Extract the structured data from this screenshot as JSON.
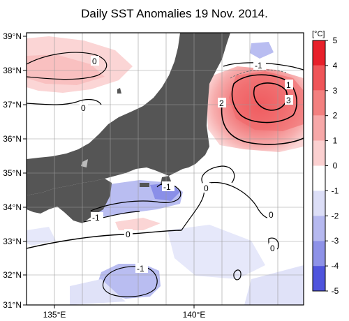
{
  "title": "Daily SST Anomalies 19 Nov. 2014.",
  "lat_labels": [
    "39°N",
    "38°N",
    "37°N",
    "36°N",
    "35°N",
    "34°N",
    "33°N",
    "32°N",
    "31°N"
  ],
  "lon_labels": [
    "135°E",
    "140°E"
  ],
  "colorbar": {
    "unit": "[°C]",
    "ticks": [
      "5",
      "4",
      "3",
      "2",
      "1",
      "0",
      "-1",
      "-2",
      "-3",
      "-4",
      "-5"
    ],
    "colors": [
      "#e8202a",
      "#ee4d52",
      "#f27a7c",
      "#f6a2a2",
      "#f9c6c6",
      "#ffffff",
      "#d7d9f6",
      "#b1b5ef",
      "#8a8fe8",
      "#5d62df",
      "#2b2fd8"
    ]
  },
  "contour_labels": [
    "0",
    "0",
    "-1",
    "1",
    "2",
    "3",
    "-1",
    "0",
    "-1",
    "0",
    "0",
    "0",
    "-1"
  ]
}
